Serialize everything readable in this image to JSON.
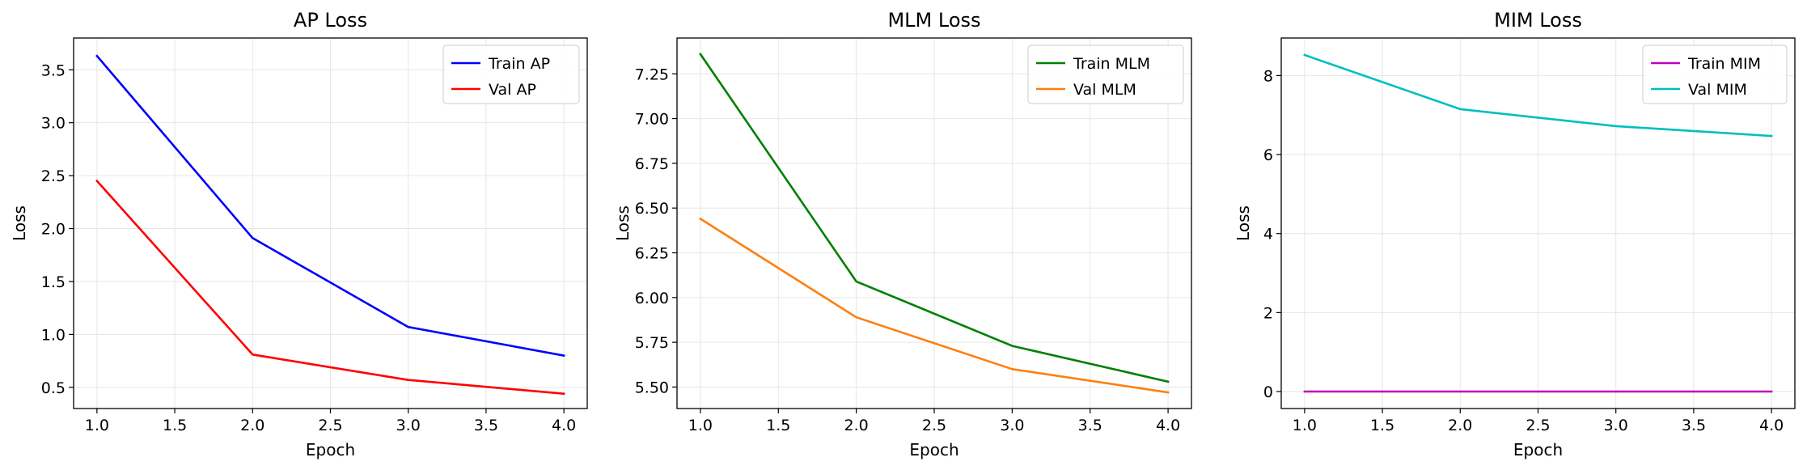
{
  "chart_data": [
    {
      "type": "line",
      "title": "AP Loss",
      "xlabel": "Epoch",
      "ylabel": "Loss",
      "xlim": [
        0.85,
        4.15
      ],
      "ylim": [
        0.3,
        3.8
      ],
      "xticks": [
        "1.0",
        "1.5",
        "2.0",
        "2.5",
        "3.0",
        "3.5",
        "4.0"
      ],
      "yticks": [
        "0.5",
        "1.0",
        "1.5",
        "2.0",
        "2.5",
        "3.0",
        "3.5"
      ],
      "grid": true,
      "legend": "top-right",
      "series": [
        {
          "name": "Train AP",
          "color": "#0000ff",
          "x": [
            1,
            2,
            3,
            4
          ],
          "y": [
            3.63,
            1.91,
            1.07,
            0.8
          ]
        },
        {
          "name": "Val AP",
          "color": "#ff0000",
          "x": [
            1,
            2,
            3,
            4
          ],
          "y": [
            2.45,
            0.81,
            0.57,
            0.44
          ]
        }
      ]
    },
    {
      "type": "line",
      "title": "MLM Loss",
      "xlabel": "Epoch",
      "ylabel": "Loss",
      "xlim": [
        0.85,
        4.15
      ],
      "ylim": [
        5.38,
        7.45
      ],
      "xticks": [
        "1.0",
        "1.5",
        "2.0",
        "2.5",
        "3.0",
        "3.5",
        "4.0"
      ],
      "yticks": [
        "5.50",
        "5.75",
        "6.00",
        "6.25",
        "6.50",
        "6.75",
        "7.00",
        "7.25"
      ],
      "grid": true,
      "legend": "top-right",
      "series": [
        {
          "name": "Train MLM",
          "color": "#008000",
          "x": [
            1,
            2,
            3,
            4
          ],
          "y": [
            7.36,
            6.09,
            5.73,
            5.53
          ]
        },
        {
          "name": "Val MLM",
          "color": "#ff7f0e",
          "x": [
            1,
            2,
            3,
            4
          ],
          "y": [
            6.44,
            5.89,
            5.6,
            5.47
          ]
        }
      ]
    },
    {
      "type": "line",
      "title": "MIM Loss",
      "xlabel": "Epoch",
      "ylabel": "Loss",
      "xlim": [
        0.85,
        4.15
      ],
      "ylim": [
        -0.43,
        8.95
      ],
      "xticks": [
        "1.0",
        "1.5",
        "2.0",
        "2.5",
        "3.0",
        "3.5",
        "4.0"
      ],
      "yticks": [
        "0",
        "2",
        "4",
        "6",
        "8"
      ],
      "grid": true,
      "legend": "top-right",
      "series": [
        {
          "name": "Train MIM",
          "color": "#bf00bf",
          "x": [
            1,
            2,
            3,
            4
          ],
          "y": [
            0,
            0,
            0,
            0
          ]
        },
        {
          "name": "Val MIM",
          "color": "#00bfbf",
          "x": [
            1,
            2,
            3,
            4
          ],
          "y": [
            8.52,
            7.15,
            6.72,
            6.47
          ]
        }
      ]
    }
  ]
}
